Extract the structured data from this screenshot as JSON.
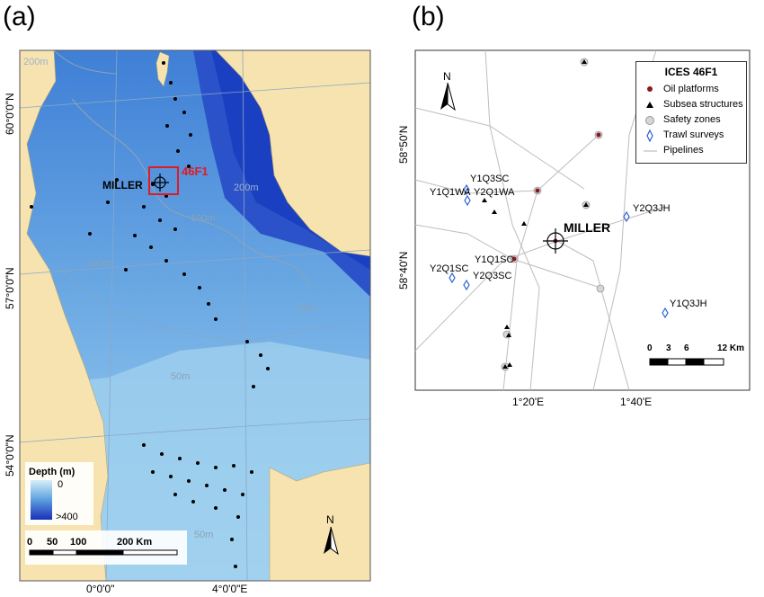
{
  "panel_a": {
    "letter": "(a)",
    "lat_labels": [
      "60°0'0\"N",
      "57°0'0\"N",
      "54°0'0\"N"
    ],
    "lon_labels": [
      "0°0'0\"",
      "4°0'0\"E"
    ],
    "contours": [
      "200m",
      "200m",
      "100m",
      "100m",
      "50m",
      "50m",
      "50m"
    ],
    "platform_label": "MILLER",
    "box_label": "46F1",
    "legend": {
      "title": "Depth (m)",
      "min": "0",
      "max": ">400"
    },
    "scalebar": {
      "ticks": [
        "0",
        "50",
        "100"
      ],
      "end": "200 Km"
    },
    "north": "N",
    "colors": {
      "land": "#f6e3b0",
      "shallow": "#b8dff2",
      "mid": "#5b9fde",
      "deep": "#1a3fc0",
      "box": "#e01b24"
    }
  },
  "panel_b": {
    "letter": "(b)",
    "lat_labels": [
      "58°50'N",
      "58°40'N"
    ],
    "lon_labels": [
      "1°20'E",
      "1°40'E"
    ],
    "legend": {
      "title": "ICES 46F1",
      "items": [
        "Oil platforms",
        "Subsea structures",
        "Safety zones",
        "Trawl surveys",
        "Pipelines"
      ]
    },
    "platform_label": "MILLER",
    "survey_labels": [
      "Y1Q3SC",
      "Y1Q1WA",
      "Y2Q1WA",
      "Y2Q3JH",
      "Y1Q1SC",
      "Y2Q1SC",
      "Y2Q3SC",
      "Y1Q3JH"
    ],
    "scalebar": {
      "ticks": [
        "0",
        "3",
        "6"
      ],
      "end": "12 Km"
    },
    "north": "N"
  }
}
